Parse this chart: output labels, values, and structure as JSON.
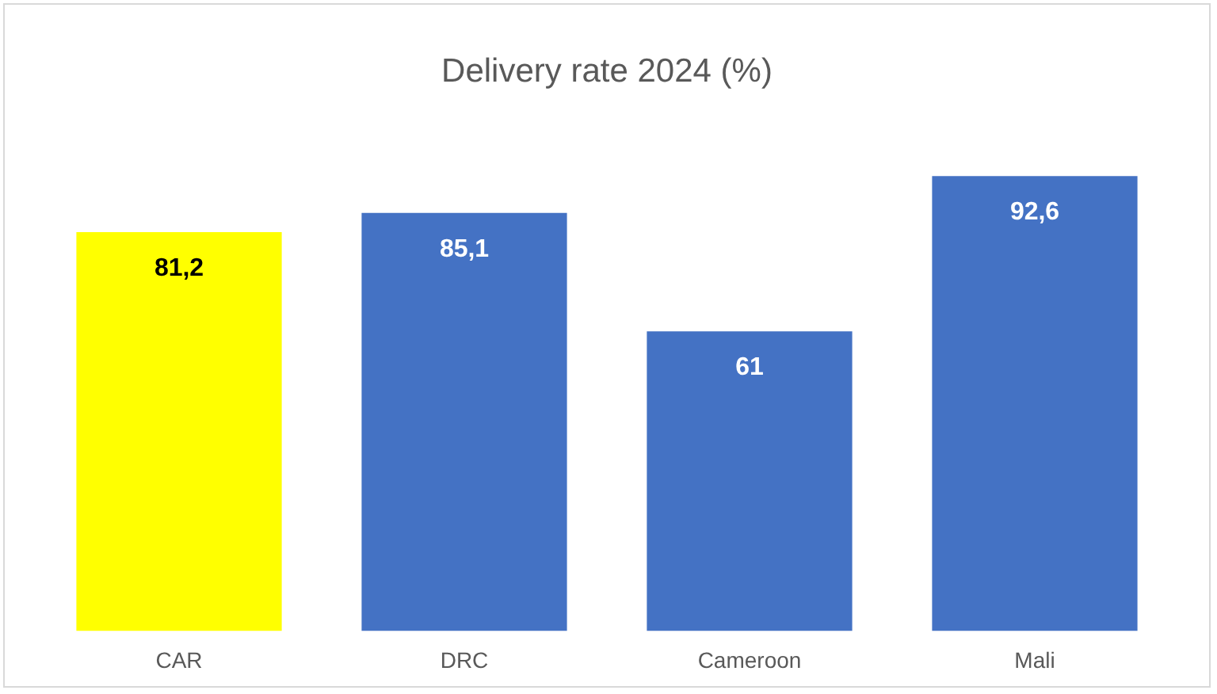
{
  "chart_data": {
    "type": "bar",
    "title": "Delivery rate 2024 (%)",
    "categories": [
      "CAR",
      "DRC",
      "Cameroon",
      "Mali"
    ],
    "values": [
      81.2,
      85.1,
      61,
      92.6
    ],
    "colors": [
      "#ffff00",
      "#4472c4",
      "#4472c4",
      "#4472c4"
    ],
    "value_labels": [
      "81,2",
      "85,1",
      "61",
      "92,6"
    ],
    "legend": false
  }
}
